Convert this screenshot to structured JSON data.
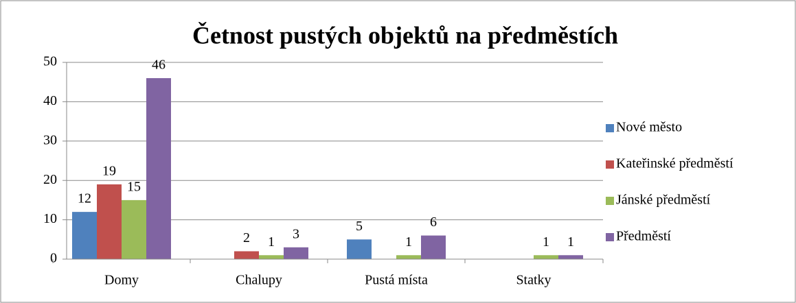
{
  "chart_data": {
    "type": "bar",
    "title": "Četnost pustých objektů na předměstích",
    "categories": [
      "Domy",
      "Chalupy",
      "Pustá místa",
      "Statky"
    ],
    "series": [
      {
        "name": "Nové město",
        "color": "#4f81bd",
        "values": [
          12,
          null,
          5,
          null
        ]
      },
      {
        "name": "Kateřinské předměstí",
        "color": "#c0504d",
        "values": [
          19,
          2,
          null,
          null
        ]
      },
      {
        "name": "Jánské předměstí",
        "color": "#9bbb59",
        "values": [
          15,
          1,
          1,
          1
        ]
      },
      {
        "name": "Předměstí",
        "color": "#8064a2",
        "values": [
          46,
          3,
          6,
          1
        ]
      }
    ],
    "ylim": [
      0,
      50
    ],
    "yticks": [
      0,
      10,
      20,
      30,
      40,
      50
    ],
    "grid": true,
    "legend": "right"
  }
}
